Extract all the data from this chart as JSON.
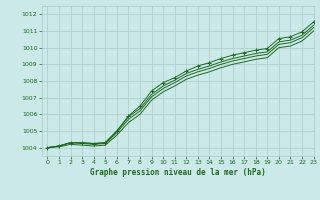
{
  "bg_color": "#cce9e9",
  "grid_color": "#aacccc",
  "line_color": "#1a6b1a",
  "xlabel": "Graphe pression niveau de la mer (hPa)",
  "ylim": [
    1003.5,
    1012.5
  ],
  "xlim": [
    -0.5,
    23
  ],
  "yticks": [
    1004,
    1005,
    1006,
    1007,
    1008,
    1009,
    1010,
    1011,
    1012
  ],
  "xticks": [
    0,
    1,
    2,
    3,
    4,
    5,
    6,
    7,
    8,
    9,
    10,
    11,
    12,
    13,
    14,
    15,
    16,
    17,
    18,
    19,
    20,
    21,
    22,
    23
  ],
  "series": [
    [
      1004.0,
      1004.1,
      1004.3,
      1004.3,
      1004.25,
      1004.3,
      1005.0,
      1005.9,
      1006.5,
      1007.4,
      1007.9,
      1008.2,
      1008.6,
      1008.9,
      1009.1,
      1009.35,
      1009.55,
      1009.7,
      1009.85,
      1009.95,
      1010.55,
      1010.65,
      1010.95,
      1011.55
    ],
    [
      1004.0,
      1004.1,
      1004.3,
      1004.3,
      1004.25,
      1004.3,
      1005.0,
      1005.85,
      1006.35,
      1007.2,
      1007.7,
      1008.05,
      1008.45,
      1008.7,
      1008.9,
      1009.15,
      1009.35,
      1009.5,
      1009.65,
      1009.75,
      1010.35,
      1010.45,
      1010.75,
      1011.35
    ],
    [
      1004.0,
      1004.1,
      1004.3,
      1004.25,
      1004.2,
      1004.25,
      1004.9,
      1005.7,
      1006.2,
      1007.05,
      1007.55,
      1007.9,
      1008.3,
      1008.55,
      1008.75,
      1009.0,
      1009.2,
      1009.35,
      1009.5,
      1009.6,
      1010.2,
      1010.3,
      1010.6,
      1011.2
    ],
    [
      1004.0,
      1004.05,
      1004.2,
      1004.15,
      1004.1,
      1004.15,
      1004.75,
      1005.5,
      1006.0,
      1006.85,
      1007.35,
      1007.7,
      1008.1,
      1008.35,
      1008.55,
      1008.8,
      1009.0,
      1009.15,
      1009.3,
      1009.4,
      1010.0,
      1010.1,
      1010.4,
      1011.0
    ]
  ],
  "marker_series": 0
}
